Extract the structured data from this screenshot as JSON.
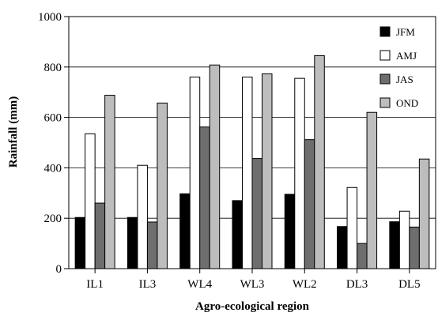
{
  "chart_data": {
    "type": "bar",
    "title": "",
    "xlabel": "Agro-ecological region",
    "ylabel": "Rainfall (mm)",
    "ylim": [
      0,
      1000
    ],
    "yticks": [
      0,
      200,
      400,
      600,
      800,
      1000
    ],
    "grid": "horizontal",
    "legend_position": "top-right",
    "categories": [
      "IL1",
      "IL3",
      "WL4",
      "WL3",
      "WL2",
      "DL3",
      "DL5"
    ],
    "series": [
      {
        "name": "JFM",
        "color": "#000000",
        "values": [
          203,
          203,
          297,
          270,
          295,
          167,
          186
        ]
      },
      {
        "name": "AMJ",
        "color": "#ffffff",
        "values": [
          535,
          410,
          760,
          760,
          755,
          322,
          228
        ]
      },
      {
        "name": "JAS",
        "color": "#6e6e6e",
        "values": [
          260,
          185,
          562,
          437,
          512,
          100,
          165
        ]
      },
      {
        "name": "OND",
        "color": "#bdbdbd",
        "values": [
          688,
          657,
          808,
          773,
          845,
          620,
          435
        ]
      }
    ]
  }
}
